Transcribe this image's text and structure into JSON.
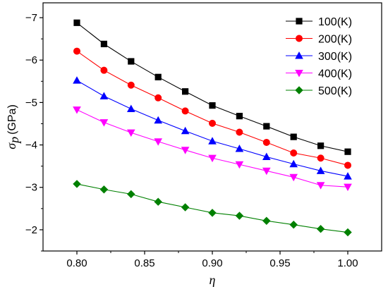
{
  "chart_data": {
    "type": "line",
    "x": [
      0.8,
      0.82,
      0.84,
      0.86,
      0.88,
      0.9,
      0.92,
      0.94,
      0.96,
      0.98,
      1.0
    ],
    "series": [
      {
        "name": "100(K)",
        "color": "#000000",
        "marker": "square",
        "values": [
          -6.88,
          -6.38,
          -5.97,
          -5.6,
          -5.26,
          -4.93,
          -4.68,
          -4.44,
          -4.19,
          -3.98,
          -3.84
        ]
      },
      {
        "name": "200(K)",
        "color": "#ff0000",
        "marker": "circle",
        "values": [
          -6.21,
          -5.76,
          -5.41,
          -5.11,
          -4.8,
          -4.51,
          -4.3,
          -4.06,
          -3.81,
          -3.69,
          -3.52
        ]
      },
      {
        "name": "300(K)",
        "color": "#0000ff",
        "marker": "triangle-up",
        "values": [
          -5.52,
          -5.15,
          -4.85,
          -4.58,
          -4.33,
          -4.09,
          -3.91,
          -3.72,
          -3.55,
          -3.39,
          -3.26
        ]
      },
      {
        "name": "400(K)",
        "color": "#ff00ff",
        "marker": "triangle-down",
        "values": [
          -4.83,
          -4.53,
          -4.29,
          -4.08,
          -3.88,
          -3.69,
          -3.54,
          -3.39,
          -3.24,
          -3.05,
          -3.01
        ]
      },
      {
        "name": "500(K)",
        "color": "#008000",
        "marker": "diamond",
        "values": [
          -3.08,
          -2.95,
          -2.84,
          -2.66,
          -2.53,
          -2.4,
          -2.33,
          -2.21,
          -2.12,
          -2.02,
          -1.94
        ]
      }
    ],
    "xlabel": "η",
    "ylabel_symbol": "σ",
    "ylabel_subscript": "p",
    "ylabel_unit": "(GPa)",
    "xlim": [
      0.775,
      1.025
    ],
    "ylim": [
      -1.5,
      -7.35
    ],
    "xticks": [
      0.8,
      0.85,
      0.9,
      0.95,
      1.0
    ],
    "xtick_labels": [
      "0.80",
      "0.85",
      "0.90",
      "0.95",
      "1.00"
    ],
    "yticks": [
      -2,
      -3,
      -4,
      -5,
      -6,
      -7
    ],
    "ytick_labels": [
      "−2",
      "−3",
      "−4",
      "−5",
      "−6",
      "−7"
    ],
    "grid": false,
    "legend_position": "top-right"
  }
}
